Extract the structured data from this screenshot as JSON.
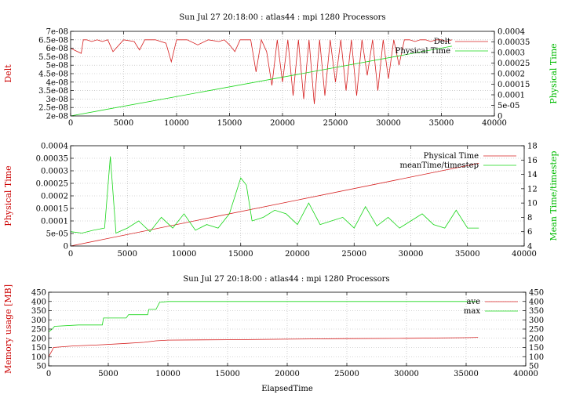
{
  "colors": {
    "red": "#d62020",
    "green": "#19d619",
    "axis_red": "#cc0000",
    "axis_green": "#00bb00"
  },
  "chart_data": [
    {
      "type": "line",
      "title": "Sun Jul 27 20:18:00 : atlas44 : mpi 1280 Processors",
      "xlabel": "",
      "ylabel": "Delt",
      "y2label": "Physical Time",
      "xlim": [
        0,
        40000
      ],
      "ylim": [
        2e-08,
        7e-08
      ],
      "y2lim": [
        0,
        0.0004
      ],
      "xticks": [
        "0",
        "5000",
        "10000",
        "15000",
        "20000",
        "25000",
        "30000",
        "35000",
        "40000"
      ],
      "yticks": [
        "2e-08",
        "2.5e-08",
        "3e-08",
        "3.5e-08",
        "4e-08",
        "4.5e-08",
        "5e-08",
        "5.5e-08",
        "6e-08",
        "6.5e-08",
        "7e-08"
      ],
      "y2ticks": [
        "0",
        "5e-05",
        "0.0001",
        "0.00015",
        "0.0002",
        "0.00025",
        "0.0003",
        "0.00035",
        "0.0004"
      ],
      "legend_position": "top-right",
      "series": [
        {
          "name": "Delt",
          "axis": "y",
          "color": "#d62020",
          "x": [
            0,
            1000,
            1200,
            1500,
            2000,
            2500,
            3000,
            3500,
            4000,
            5000,
            6000,
            6500,
            7000,
            8000,
            9000,
            9500,
            10000,
            11000,
            12000,
            13000,
            14000,
            14500,
            15000,
            15500,
            16000,
            17000,
            17500,
            18000,
            18500,
            19000,
            19500,
            20000,
            20500,
            21000,
            21500,
            22000,
            22500,
            23000,
            23500,
            24000,
            24500,
            25000,
            25500,
            26000,
            26500,
            27000,
            27500,
            28000,
            28500,
            29000,
            29500,
            30000,
            30500,
            31000,
            31500,
            32000,
            32500,
            33000,
            33500,
            34000,
            34500,
            35000,
            35500,
            36000
          ],
          "y": [
            6e-08,
            5.7e-08,
            6.5e-08,
            6.5e-08,
            6.4e-08,
            6.5e-08,
            6.4e-08,
            6.5e-08,
            5.8e-08,
            6.5e-08,
            6.4e-08,
            5.9e-08,
            6.5e-08,
            6.5e-08,
            6.3e-08,
            5.2e-08,
            6.5e-08,
            6.5e-08,
            6.2e-08,
            6.5e-08,
            6.4e-08,
            6.5e-08,
            6.2e-08,
            5.8e-08,
            6.5e-08,
            6.5e-08,
            4.6e-08,
            6.5e-08,
            5.8e-08,
            3.8e-08,
            6.5e-08,
            4e-08,
            6.5e-08,
            3.2e-08,
            6.5e-08,
            3e-08,
            6.5e-08,
            2.7e-08,
            6.5e-08,
            3.2e-08,
            6.5e-08,
            4e-08,
            6.5e-08,
            3.5e-08,
            6.5e-08,
            3.2e-08,
            6.5e-08,
            4.4e-08,
            6.5e-08,
            3.5e-08,
            6.5e-08,
            4.2e-08,
            6.5e-08,
            5e-08,
            6.5e-08,
            6.5e-08,
            6.4e-08,
            6.5e-08,
            6.5e-08,
            6.4e-08,
            6.5e-08,
            6.5e-08,
            6.4e-08,
            6.5e-08
          ]
        },
        {
          "name": "Physical Time",
          "axis": "y2",
          "color": "#19d619",
          "x": [
            0,
            36000
          ],
          "y": [
            0,
            0.00033
          ]
        }
      ]
    },
    {
      "type": "line",
      "title": "",
      "xlabel": "",
      "ylabel": "Physical Time",
      "y2label": "Mean Time/timestep",
      "xlim": [
        0,
        40000
      ],
      "ylim": [
        0,
        0.0004
      ],
      "y2lim": [
        4,
        18
      ],
      "xticks": [
        "0",
        "5000",
        "10000",
        "15000",
        "20000",
        "25000",
        "30000",
        "35000",
        "40000"
      ],
      "yticks": [
        "0",
        "5e-05",
        "0.0001",
        "0.00015",
        "0.0002",
        "0.00025",
        "0.0003",
        "0.00035",
        "0.0004"
      ],
      "y2ticks": [
        "4",
        "6",
        "8",
        "10",
        "12",
        "14",
        "16",
        "18"
      ],
      "legend_position": "top-right",
      "series": [
        {
          "name": "Physical Time",
          "axis": "y",
          "color": "#d62020",
          "x": [
            0,
            36000
          ],
          "y": [
            0,
            0.00033
          ]
        },
        {
          "name": "meanTime/timestep",
          "axis": "y2",
          "color": "#19d619",
          "x": [
            0,
            1000,
            2000,
            3000,
            3500,
            4000,
            5000,
            6000,
            7000,
            8000,
            9000,
            10000,
            11000,
            12000,
            13000,
            14000,
            15000,
            15500,
            16000,
            17000,
            18000,
            19000,
            20000,
            21000,
            22000,
            23000,
            24000,
            25000,
            26000,
            27000,
            28000,
            29000,
            30000,
            31000,
            32000,
            33000,
            34000,
            35000,
            36000
          ],
          "y": [
            6.0,
            5.8,
            6.2,
            6.5,
            16.5,
            5.8,
            6.5,
            7.5,
            6.0,
            8.0,
            6.5,
            8.5,
            6.2,
            7.0,
            6.5,
            8.5,
            13.5,
            12.5,
            7.5,
            8.0,
            9.0,
            8.5,
            7.0,
            10.0,
            7.0,
            7.5,
            8.0,
            6.5,
            9.5,
            6.8,
            8.0,
            6.5,
            7.5,
            8.5,
            7.0,
            6.5,
            9.0,
            6.5,
            6.5
          ]
        }
      ]
    },
    {
      "type": "line",
      "title": "Sun Jul 27 20:18:00 : atlas44 : mpi 1280 Processors",
      "xlabel": "ElapsedTime",
      "ylabel": "Memory usage [MB]",
      "y2label": "",
      "xlim": [
        0,
        40000
      ],
      "ylim": [
        50,
        450
      ],
      "y2lim": [
        50,
        450
      ],
      "xticks": [
        "0",
        "5000",
        "10000",
        "15000",
        "20000",
        "25000",
        "30000",
        "35000",
        "40000"
      ],
      "yticks": [
        "50",
        "100",
        "150",
        "200",
        "250",
        "300",
        "350",
        "400",
        "450"
      ],
      "y2ticks": [
        "50",
        "100",
        "150",
        "200",
        "250",
        "300",
        "350",
        "400",
        "450"
      ],
      "legend_position": "top-right",
      "series": [
        {
          "name": "ave",
          "axis": "y",
          "color": "#d62020",
          "x": [
            0,
            300,
            400,
            2000,
            4500,
            6500,
            8000,
            9000,
            10000,
            15000,
            20000,
            25000,
            30000,
            35000,
            36000
          ],
          "y": [
            100,
            135,
            150,
            158,
            165,
            172,
            178,
            186,
            190,
            192,
            195,
            198,
            200,
            203,
            205
          ]
        },
        {
          "name": "max",
          "axis": "y",
          "color": "#19d619",
          "x": [
            0,
            300,
            500,
            2500,
            4500,
            4600,
            6500,
            6700,
            8300,
            8400,
            9000,
            9300,
            10000,
            15000,
            20000,
            25000,
            30000,
            35000,
            36000
          ],
          "y": [
            235,
            250,
            265,
            272,
            272,
            310,
            310,
            328,
            328,
            357,
            357,
            395,
            400,
            400,
            400,
            400,
            400,
            400,
            400
          ]
        }
      ]
    }
  ]
}
